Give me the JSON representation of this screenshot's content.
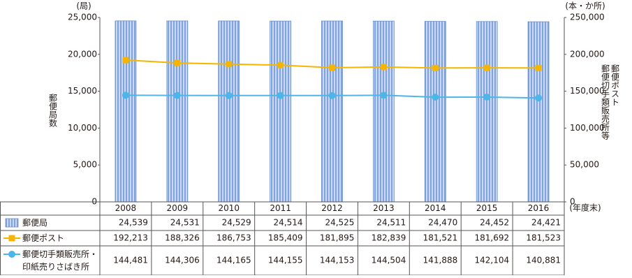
{
  "chart_data": {
    "type": "bar_line",
    "ylabel": "郵便局数",
    "y_unit": "(局)",
    "y2_unit": "(本・か所)",
    "y2label": [
      "郵便ポスト",
      "郵便切手類販売所等"
    ],
    "x_unit": "(年度末)",
    "categories": [
      "2008",
      "2009",
      "2010",
      "2011",
      "2012",
      "2013",
      "2014",
      "2015",
      "2016"
    ],
    "ylim": [
      0,
      25000
    ],
    "yticks": [
      0,
      {
        "value": 5000,
        "label": "5,000"
      },
      {
        "value": 10000,
        "label": "10,000"
      },
      {
        "value": 15000,
        "label": "15,000"
      },
      {
        "value": 20000,
        "label": "20,000"
      },
      {
        "value": 25000,
        "label": "25,000"
      }
    ],
    "y2lim": [
      0,
      250000
    ],
    "y2ticks": [
      0,
      {
        "value": 50000,
        "label": "50,000"
      },
      {
        "value": 100000,
        "label": "100,000"
      },
      {
        "value": 150000,
        "label": "150,000"
      },
      {
        "value": 200000,
        "label": "200,000"
      },
      {
        "value": 250000,
        "label": "250,000"
      }
    ],
    "series": [
      {
        "name": "郵便局",
        "kind": "bar",
        "color": "#8fb2e3",
        "values": [
          24539,
          24531,
          24529,
          24514,
          24525,
          24511,
          24470,
          24452,
          24421
        ],
        "value_labels": [
          "24,539",
          "24,531",
          "24,529",
          "24,514",
          "24,525",
          "24,511",
          "24,470",
          "24,452",
          "24,421"
        ]
      },
      {
        "name": "郵便ポスト",
        "kind": "line",
        "marker": "square",
        "axis": "y2",
        "color": "#f7b500",
        "values": [
          192213,
          188326,
          186753,
          185409,
          181895,
          182839,
          181521,
          181692,
          181523
        ],
        "value_labels": [
          "192,213",
          "188,326",
          "186,753",
          "185,409",
          "181,895",
          "182,839",
          "181,521",
          "181,692",
          "181,523"
        ]
      },
      {
        "name": "郵便切手類販売所・印紙売りさばき所",
        "kind": "line",
        "marker": "circle",
        "axis": "y2",
        "color": "#4db6e8",
        "values": [
          144481,
          144306,
          144165,
          144155,
          144153,
          144504,
          141888,
          142104,
          140881
        ],
        "value_labels": [
          "144,481",
          "144,306",
          "144,165",
          "144,155",
          "144,153",
          "144,504",
          "141,888",
          "142,104",
          "140,881"
        ]
      }
    ]
  }
}
